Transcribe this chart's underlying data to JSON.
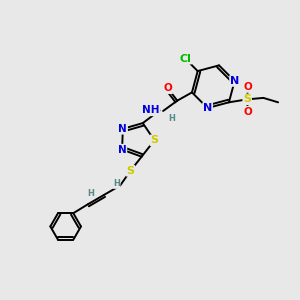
{
  "background_color": "#e8e8e8",
  "figure_size": [
    3.0,
    3.0
  ],
  "dpi": 100,
  "atom_colors": {
    "C": "#000000",
    "N": "#0000dd",
    "O": "#ff0000",
    "S": "#cccc00",
    "Cl": "#00bb00",
    "H": "#558888"
  },
  "bond_color": "#000000",
  "bond_width": 1.4,
  "font_size": 7.5,
  "title": ""
}
